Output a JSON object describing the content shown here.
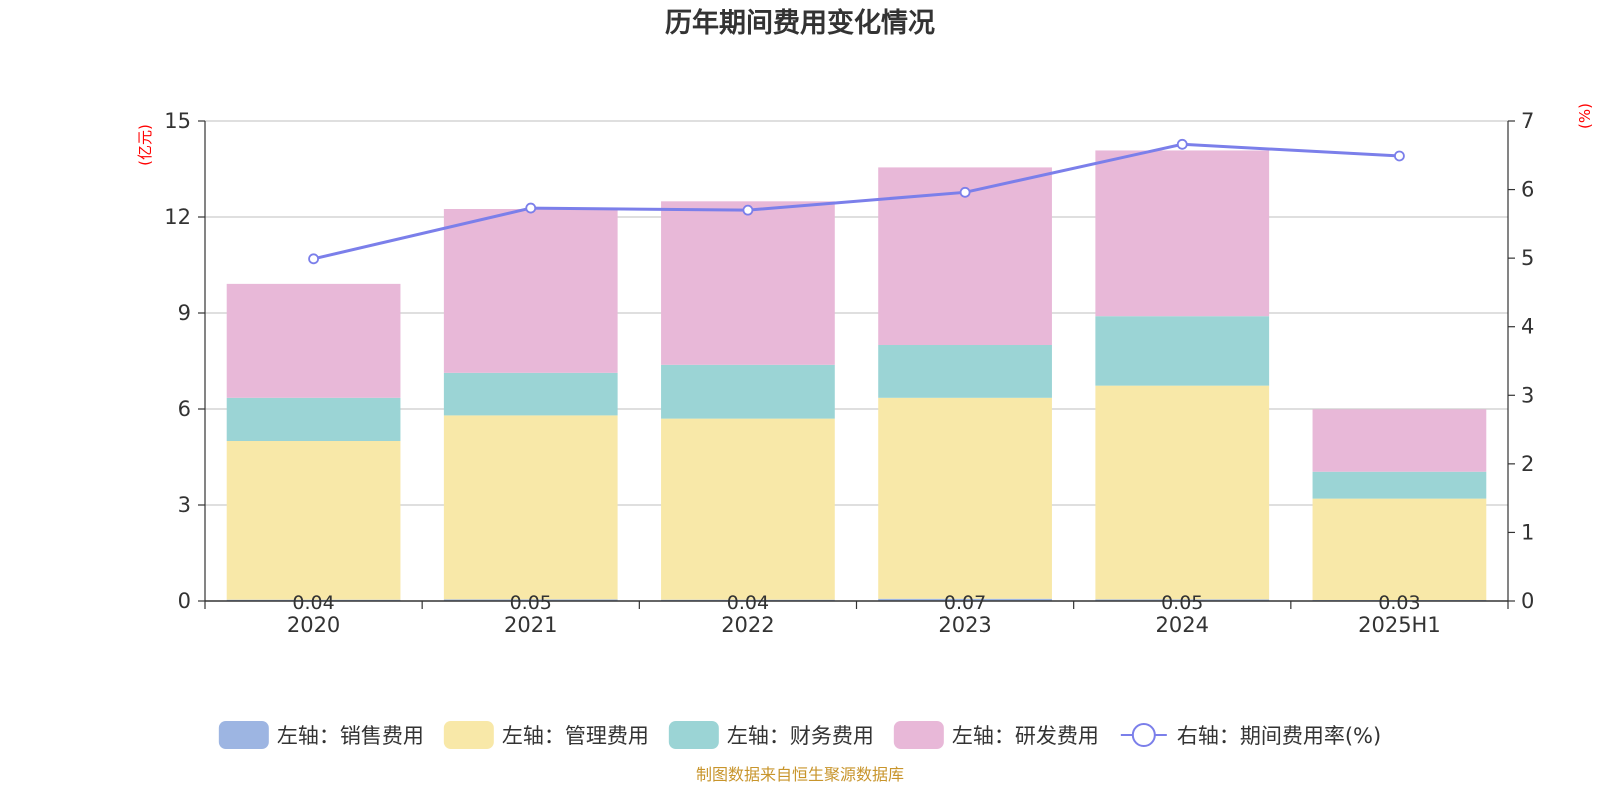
{
  "chart_data": {
    "type": "bar",
    "title": "历年期间费用变化情况",
    "categories": [
      "2020",
      "2021",
      "2022",
      "2023",
      "2024",
      "2025H1"
    ],
    "left_axis": {
      "unit": "(亿元)",
      "ylim": [
        0,
        15
      ],
      "ticks": [
        0,
        3,
        6,
        9,
        12,
        15
      ]
    },
    "right_axis": {
      "unit": "(%)",
      "ylim": [
        0,
        7
      ],
      "ticks": [
        0,
        1,
        2,
        3,
        4,
        5,
        6,
        7
      ]
    },
    "series": [
      {
        "name": "左轴：销售费用",
        "type": "bar",
        "stack": true,
        "color": "#9db5e2",
        "values": [
          0.04,
          0.05,
          0.04,
          0.07,
          0.05,
          0.03
        ],
        "labels": [
          "0.04",
          "0.05",
          "0.04",
          "0.07",
          "0.05",
          "0.03"
        ]
      },
      {
        "name": "左轴：管理费用",
        "type": "bar",
        "stack": true,
        "color": "#f8e8a8",
        "values": [
          4.96,
          5.75,
          5.66,
          6.28,
          6.68,
          3.17
        ]
      },
      {
        "name": "左轴：财务费用",
        "type": "bar",
        "stack": true,
        "color": "#9bd4d5",
        "values": [
          1.35,
          1.33,
          1.68,
          1.65,
          2.17,
          0.84
        ]
      },
      {
        "name": "左轴：研发费用",
        "type": "bar",
        "stack": true,
        "color": "#e8b8d8",
        "values": [
          3.56,
          5.12,
          5.11,
          5.55,
          5.18,
          1.95
        ]
      },
      {
        "name": "右轴：期间费用率(%)",
        "type": "line",
        "axis": "right",
        "color": "#7b7fea",
        "values": [
          4.99,
          5.73,
          5.7,
          5.96,
          6.66,
          6.49
        ]
      }
    ],
    "legend_position": "bottom",
    "grid": true
  },
  "footer": {
    "source": "制图数据来自恒生聚源数据库"
  }
}
